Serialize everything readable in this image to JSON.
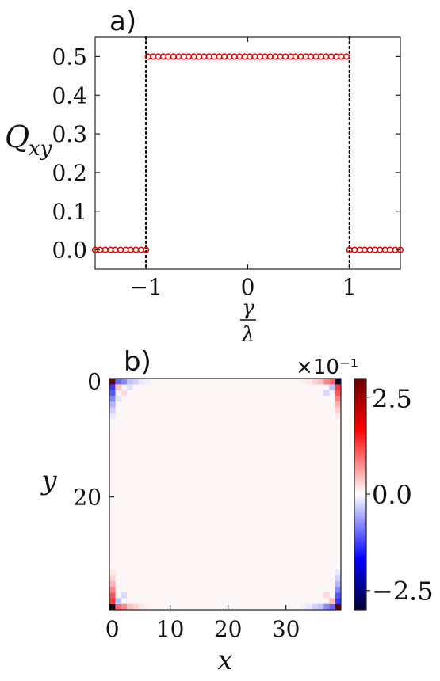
{
  "chart_data": [
    {
      "type": "scatter",
      "panel_label": "a)",
      "ylabel": "Q_xy",
      "xlabel": "γ/λ",
      "xlim": [
        -1.5,
        1.5
      ],
      "ylim": [
        -0.05,
        0.55
      ],
      "x_ticks": [
        -1,
        0,
        1
      ],
      "x_tick_labels": [
        "−1",
        "0",
        "1"
      ],
      "y_ticks": [
        0.0,
        0.1,
        0.2,
        0.3,
        0.4,
        0.5
      ],
      "y_tick_labels": [
        "0.0",
        "0.1",
        "0.2",
        "0.3",
        "0.4",
        "0.5"
      ],
      "vlines": [
        -1,
        1
      ],
      "marker_color": "#e00000",
      "series": [
        {
          "x": [
            -1.5,
            -1.45,
            -1.4,
            -1.35,
            -1.3,
            -1.25,
            -1.2,
            -1.15,
            -1.1,
            -1.05,
            -1.0,
            -0.98,
            -0.93,
            -0.88,
            -0.83,
            -0.78,
            -0.73,
            -0.68,
            -0.63,
            -0.58,
            -0.53,
            -0.48,
            -0.43,
            -0.38,
            -0.33,
            -0.28,
            -0.23,
            -0.18,
            -0.13,
            -0.08,
            -0.03,
            0.02,
            0.07,
            0.12,
            0.17,
            0.22,
            0.27,
            0.32,
            0.37,
            0.42,
            0.47,
            0.52,
            0.57,
            0.62,
            0.67,
            0.72,
            0.77,
            0.82,
            0.87,
            0.92,
            0.97,
            1.0,
            1.05,
            1.1,
            1.15,
            1.2,
            1.25,
            1.3,
            1.35,
            1.4,
            1.45,
            1.5
          ],
          "y": [
            0,
            0,
            0,
            0,
            0,
            0,
            0,
            0,
            0,
            0,
            0,
            0.5,
            0.5,
            0.5,
            0.5,
            0.5,
            0.5,
            0.5,
            0.5,
            0.5,
            0.5,
            0.5,
            0.5,
            0.5,
            0.5,
            0.5,
            0.5,
            0.5,
            0.5,
            0.5,
            0.5,
            0.5,
            0.5,
            0.5,
            0.5,
            0.5,
            0.5,
            0.5,
            0.5,
            0.5,
            0.5,
            0.5,
            0.5,
            0.5,
            0.5,
            0.5,
            0.5,
            0.5,
            0.5,
            0.5,
            0.5,
            0,
            0,
            0,
            0,
            0,
            0,
            0,
            0,
            0,
            0,
            0
          ]
        }
      ]
    },
    {
      "type": "heatmap",
      "panel_label": "b)",
      "xlabel": "x",
      "ylabel": "y",
      "grid_size": 40,
      "x_ticks": [
        0,
        10,
        20,
        30
      ],
      "y_ticks": [
        0,
        20
      ],
      "colorbar": {
        "multiplier": "×10⁻¹",
        "ticks": [
          2.5,
          0.0,
          -2.5
        ],
        "tick_labels": [
          "2.5",
          "0.0",
          "−2.5"
        ],
        "range": [
          -3,
          3
        ],
        "colors": [
          "#000033",
          "#0000ff",
          "#ffffff",
          "#ff0000",
          "#660000"
        ]
      },
      "cells": [
        {
          "x": 0,
          "y": 0,
          "v": 3.0
        },
        {
          "x": 1,
          "y": 0,
          "v": -1.0
        },
        {
          "x": 2,
          "y": 0,
          "v": -0.8
        },
        {
          "x": 3,
          "y": 0,
          "v": -0.4
        },
        {
          "x": 4,
          "y": 0,
          "v": -0.3
        },
        {
          "x": 5,
          "y": 0,
          "v": -0.15
        },
        {
          "x": 6,
          "y": 0,
          "v": -0.1
        },
        {
          "x": 0,
          "y": 1,
          "v": -1.3
        },
        {
          "x": 0,
          "y": 2,
          "v": -1.1
        },
        {
          "x": 0,
          "y": 3,
          "v": -0.8
        },
        {
          "x": 0,
          "y": 4,
          "v": -0.5
        },
        {
          "x": 0,
          "y": 5,
          "v": -0.3
        },
        {
          "x": 0,
          "y": 6,
          "v": -0.15
        },
        {
          "x": 1,
          "y": 1,
          "v": 0.4
        },
        {
          "x": 2,
          "y": 2,
          "v": 0.25
        },
        {
          "x": 3,
          "y": 1,
          "v": -0.2
        },
        {
          "x": 1,
          "y": 3,
          "v": -0.2
        },
        {
          "x": 39,
          "y": 0,
          "v": -3.0
        },
        {
          "x": 38,
          "y": 0,
          "v": 1.0
        },
        {
          "x": 37,
          "y": 0,
          "v": 0.8
        },
        {
          "x": 36,
          "y": 0,
          "v": 0.4
        },
        {
          "x": 35,
          "y": 0,
          "v": 0.3
        },
        {
          "x": 34,
          "y": 0,
          "v": 0.15
        },
        {
          "x": 33,
          "y": 0,
          "v": 0.1
        },
        {
          "x": 39,
          "y": 1,
          "v": 1.3
        },
        {
          "x": 39,
          "y": 2,
          "v": 1.1
        },
        {
          "x": 39,
          "y": 3,
          "v": 0.8
        },
        {
          "x": 39,
          "y": 4,
          "v": 0.5
        },
        {
          "x": 39,
          "y": 5,
          "v": 0.3
        },
        {
          "x": 39,
          "y": 6,
          "v": 0.15
        },
        {
          "x": 38,
          "y": 1,
          "v": -0.4
        },
        {
          "x": 37,
          "y": 2,
          "v": -0.25
        },
        {
          "x": 0,
          "y": 39,
          "v": -3.0
        },
        {
          "x": 1,
          "y": 39,
          "v": 1.0
        },
        {
          "x": 2,
          "y": 39,
          "v": 0.8
        },
        {
          "x": 3,
          "y": 39,
          "v": 0.4
        },
        {
          "x": 4,
          "y": 39,
          "v": 0.3
        },
        {
          "x": 5,
          "y": 39,
          "v": 0.15
        },
        {
          "x": 6,
          "y": 39,
          "v": 0.1
        },
        {
          "x": 0,
          "y": 38,
          "v": 1.3
        },
        {
          "x": 0,
          "y": 37,
          "v": 1.1
        },
        {
          "x": 0,
          "y": 36,
          "v": 0.8
        },
        {
          "x": 0,
          "y": 35,
          "v": 0.5
        },
        {
          "x": 0,
          "y": 34,
          "v": 0.3
        },
        {
          "x": 0,
          "y": 33,
          "v": 0.15
        },
        {
          "x": 1,
          "y": 38,
          "v": -0.4
        },
        {
          "x": 2,
          "y": 37,
          "v": -0.25
        },
        {
          "x": 39,
          "y": 39,
          "v": 3.0
        },
        {
          "x": 38,
          "y": 39,
          "v": -1.0
        },
        {
          "x": 37,
          "y": 39,
          "v": -0.8
        },
        {
          "x": 36,
          "y": 39,
          "v": -0.4
        },
        {
          "x": 35,
          "y": 39,
          "v": -0.3
        },
        {
          "x": 34,
          "y": 39,
          "v": -0.15
        },
        {
          "x": 33,
          "y": 39,
          "v": -0.1
        },
        {
          "x": 39,
          "y": 38,
          "v": -1.3
        },
        {
          "x": 39,
          "y": 37,
          "v": -1.1
        },
        {
          "x": 39,
          "y": 36,
          "v": -0.8
        },
        {
          "x": 39,
          "y": 35,
          "v": -0.5
        },
        {
          "x": 39,
          "y": 34,
          "v": -0.3
        },
        {
          "x": 39,
          "y": 33,
          "v": -0.15
        },
        {
          "x": 38,
          "y": 38,
          "v": 0.4
        },
        {
          "x": 37,
          "y": 37,
          "v": 0.25
        }
      ]
    }
  ]
}
